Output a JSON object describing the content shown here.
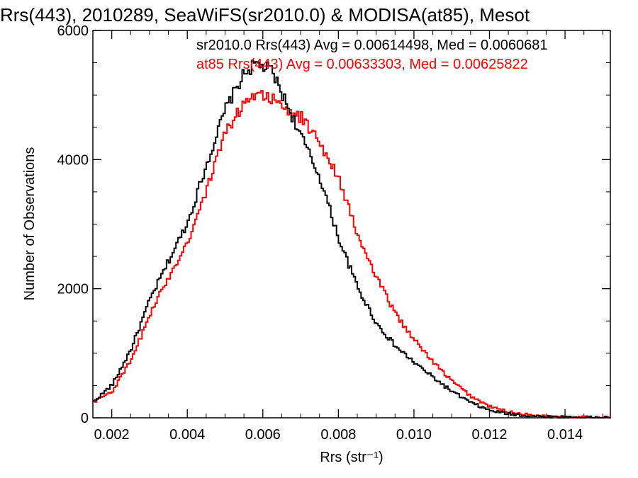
{
  "chart_data": {
    "type": "line",
    "title": "Rrs(443), 2010289, SeaWiFS(sr2010.0) & MODISA(at85), Mesot",
    "xlabel": "Rrs (str⁻¹)",
    "ylabel": "Number of Observations",
    "xlim": [
      0.0015,
      0.0152
    ],
    "ylim": [
      0,
      6000
    ],
    "x_ticks": [
      0.002,
      0.004,
      0.006,
      0.008,
      0.01,
      0.012,
      0.014
    ],
    "x_tick_labels": [
      "0.002",
      "0.004",
      "0.006",
      "0.008",
      "0.010",
      "0.012",
      "0.014"
    ],
    "y_ticks": [
      0,
      2000,
      4000,
      6000
    ],
    "y_tick_labels": [
      "0",
      "2000",
      "4000",
      "6000"
    ],
    "grid": false,
    "annotations": [
      {
        "text": "sr2010.0 Rrs(443) Avg = 0.00614498, Med = 0.0060681",
        "color": "#000000"
      },
      {
        "text": "at85 Rrs(443) Avg = 0.00633303, Med = 0.00625822",
        "color": "#ff0000"
      }
    ],
    "series": [
      {
        "name": "sr2010.0",
        "color": "#000000",
        "x": [
          0.0015,
          0.002,
          0.0025,
          0.003,
          0.0035,
          0.004,
          0.0045,
          0.005,
          0.0055,
          0.0058,
          0.0062,
          0.0065,
          0.007,
          0.0075,
          0.008,
          0.0085,
          0.009,
          0.0095,
          0.01,
          0.0105,
          0.011,
          0.0115,
          0.012,
          0.0125,
          0.013,
          0.0135,
          0.014,
          0.0145,
          0.015
        ],
        "y": [
          250,
          520,
          1080,
          1850,
          2450,
          3050,
          3950,
          4800,
          5350,
          5480,
          5380,
          5000,
          4350,
          3700,
          2750,
          2000,
          1450,
          1100,
          850,
          620,
          400,
          230,
          110,
          60,
          30,
          18,
          10,
          6,
          4
        ]
      },
      {
        "name": "at85",
        "color": "#ff0000",
        "x": [
          0.0015,
          0.002,
          0.0025,
          0.003,
          0.0035,
          0.004,
          0.0045,
          0.005,
          0.0055,
          0.0058,
          0.0062,
          0.0065,
          0.007,
          0.0075,
          0.008,
          0.0085,
          0.009,
          0.0095,
          0.01,
          0.0105,
          0.011,
          0.0115,
          0.012,
          0.0125,
          0.013,
          0.0135,
          0.014,
          0.0145,
          0.015
        ],
        "y": [
          250,
          420,
          900,
          1620,
          2200,
          2750,
          3550,
          4450,
          4880,
          5050,
          4950,
          4780,
          4650,
          4250,
          3700,
          2800,
          2150,
          1600,
          1200,
          850,
          560,
          330,
          170,
          90,
          45,
          25,
          14,
          8,
          5
        ]
      }
    ]
  }
}
